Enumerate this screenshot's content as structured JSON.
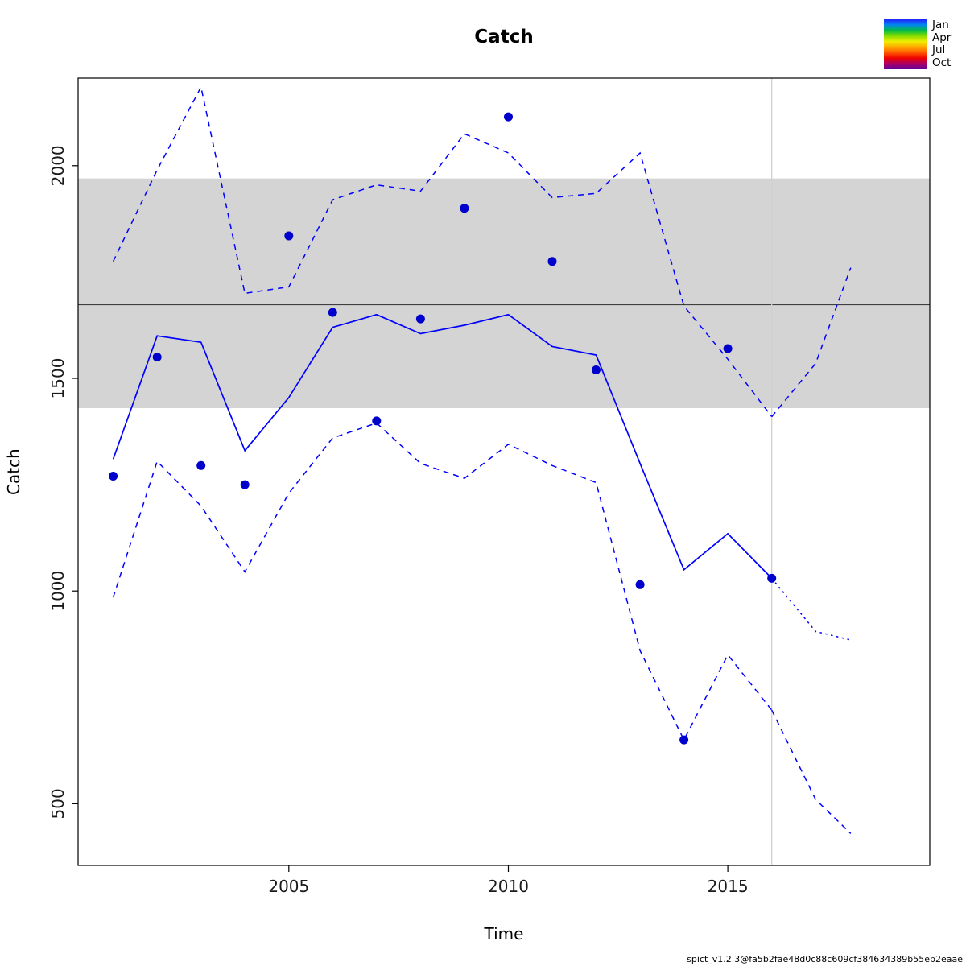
{
  "page": {
    "footer": "spict_v1.2.3@fa5b2fae48d0c88c609cf384634389b55eb2eaae"
  },
  "legend": {
    "labels": [
      "Jan",
      "Apr",
      "Jul",
      "Oct"
    ],
    "gradient": [
      "#2222ff",
      "#0088ee",
      "#00bb44",
      "#88dd00",
      "#eeee00",
      "#ffaa00",
      "#ff5500",
      "#ee0000",
      "#aa0066",
      "#660099"
    ]
  },
  "chart_data": {
    "type": "line",
    "title": "Catch",
    "xlabel": "Time",
    "ylabel": "Catch",
    "xlim": [
      2000.2,
      2019.6
    ],
    "ylim": [
      355,
      2206
    ],
    "xticks": [
      2005,
      2010,
      2015
    ],
    "yticks": [
      500,
      1000,
      1500,
      2000
    ],
    "grid": false,
    "legend_position": "top-right",
    "band": {
      "low": 1430,
      "high": 1970,
      "color": "#d4d4d4"
    },
    "refline": {
      "value": 1673,
      "color": "#404040"
    },
    "vline": {
      "x": 2016,
      "color": "#d0d0d0"
    },
    "points": {
      "name": "observed-catch",
      "color": "#0000cc",
      "x": [
        2001,
        2002,
        2003,
        2004,
        2005,
        2006,
        2007,
        2008,
        2009,
        2010,
        2011,
        2012,
        2013,
        2014,
        2015,
        2016
      ],
      "y": [
        1270,
        1550,
        1295,
        1250,
        1835,
        1655,
        1400,
        1640,
        1900,
        2115,
        1775,
        1520,
        1015,
        650,
        1570,
        1030
      ]
    },
    "series": [
      {
        "name": "estimated-catch",
        "style": "solid",
        "color": "#0000ff",
        "x": [
          2001,
          2002,
          2003,
          2004,
          2005,
          2006,
          2007,
          2008,
          2009,
          2010,
          2011,
          2012,
          2013,
          2014,
          2015,
          2016
        ],
        "y": [
          1310,
          1600,
          1585,
          1330,
          1455,
          1620,
          1650,
          1605,
          1625,
          1650,
          1575,
          1555,
          1300,
          1050,
          1135,
          1030
        ]
      },
      {
        "name": "upper-95-ci",
        "style": "dashed",
        "color": "#0000ff",
        "x": [
          2001,
          2002,
          2003,
          2004,
          2005,
          2006,
          2007,
          2008,
          2009,
          2010,
          2011,
          2012,
          2013,
          2014,
          2015,
          2016
        ],
        "y": [
          1775,
          1990,
          2185,
          1700,
          1715,
          1920,
          1955,
          1940,
          2075,
          2030,
          1925,
          1935,
          2030,
          1670,
          1545,
          1410
        ]
      },
      {
        "name": "lower-95-ci",
        "style": "dashed",
        "color": "#0000ff",
        "x": [
          2001,
          2002,
          2003,
          2004,
          2005,
          2006,
          2007,
          2008,
          2009,
          2010,
          2011,
          2012,
          2013,
          2014,
          2015,
          2016
        ],
        "y": [
          985,
          1305,
          1200,
          1045,
          1230,
          1360,
          1395,
          1300,
          1265,
          1345,
          1295,
          1255,
          860,
          650,
          850,
          720
        ]
      },
      {
        "name": "forecast",
        "style": "dotted",
        "color": "#0000ff",
        "x": [
          2016,
          2017,
          2017.8
        ],
        "y": [
          1030,
          905,
          885
        ]
      },
      {
        "name": "forecast-upper-ci",
        "style": "dashed",
        "color": "#0000ff",
        "x": [
          2016,
          2017,
          2017.8
        ],
        "y": [
          1410,
          1535,
          1760
        ]
      },
      {
        "name": "forecast-lower-ci",
        "style": "dashed",
        "color": "#0000ff",
        "x": [
          2016,
          2017,
          2017.8
        ],
        "y": [
          720,
          510,
          430
        ]
      }
    ]
  }
}
